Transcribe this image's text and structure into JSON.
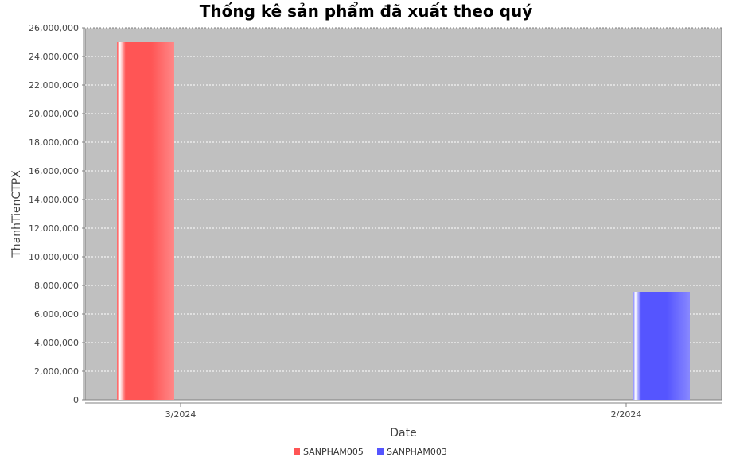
{
  "chart_data": {
    "type": "bar",
    "title": "Thống kê sản phẩm đã xuất theo quý",
    "xlabel": "Date",
    "ylabel": "ThanhTienCTPX",
    "categories": [
      "3/2024",
      "2/2024"
    ],
    "series": [
      {
        "name": "SANPHAM005",
        "values": [
          25000000,
          0
        ],
        "color": "#ff5555"
      },
      {
        "name": "SANPHAM003",
        "values": [
          0,
          7500000
        ],
        "color": "#5555ff"
      }
    ],
    "ylim": [
      0,
      26000000
    ],
    "yticks": [
      "0",
      "2,000,000",
      "4,000,000",
      "6,000,000",
      "8,000,000",
      "10,000,000",
      "12,000,000",
      "14,000,000",
      "16,000,000",
      "18,000,000",
      "20,000,000",
      "22,000,000",
      "24,000,000",
      "26,000,000"
    ],
    "grid": true,
    "legend_position": "bottom",
    "plot_background": "#c0c0c0"
  }
}
